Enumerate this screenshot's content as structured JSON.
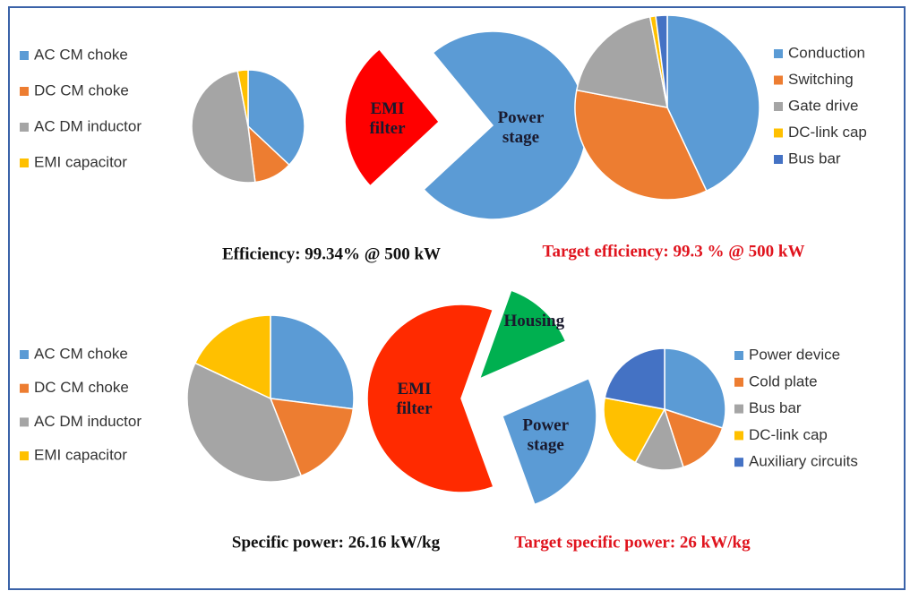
{
  "chart_data": [
    {
      "type": "pie",
      "categories": [
        "AC CM choke",
        "DC CM choke",
        "AC DM inductor",
        "EMI capacitor"
      ],
      "values": [
        37,
        11,
        49,
        3
      ],
      "colors": [
        "#5b9bd5",
        "#ed7d31",
        "#a5a5a5",
        "#ffc000"
      ],
      "legend": "left"
    },
    {
      "type": "pie",
      "categories": [
        "EMI filter",
        "Power stage"
      ],
      "values": [
        26,
        74
      ],
      "colors": [
        "#ff0000",
        "#5b9bd5"
      ],
      "slice_labels": true
    },
    {
      "type": "pie",
      "categories": [
        "Conduction",
        "Switching",
        "Gate drive",
        "DC-link cap",
        "Bus bar"
      ],
      "values": [
        43,
        35,
        19,
        1,
        2
      ],
      "colors": [
        "#5b9bd5",
        "#ed7d31",
        "#a5a5a5",
        "#ffc000",
        "#4472c4"
      ],
      "legend": "right"
    },
    {
      "type": "pie",
      "categories": [
        "AC CM choke",
        "DC CM choke",
        "AC DM inductor",
        "EMI capacitor"
      ],
      "values": [
        27,
        17,
        38,
        18
      ],
      "colors": [
        "#5b9bd5",
        "#ed7d31",
        "#a5a5a5",
        "#ffc000"
      ],
      "legend": "left"
    },
    {
      "type": "pie",
      "categories": [
        "EMI filter",
        "Housing",
        "Power stage"
      ],
      "values": [
        61,
        13,
        26
      ],
      "colors": [
        "#ff2a00",
        "#00b050",
        "#5b9bd5"
      ],
      "slice_labels": true
    },
    {
      "type": "pie",
      "categories": [
        "Power device",
        "Cold plate",
        "Bus bar",
        "DC-link cap",
        "Auxiliary circuits"
      ],
      "values": [
        30,
        15,
        13,
        20,
        22
      ],
      "colors": [
        "#5b9bd5",
        "#ed7d31",
        "#a5a5a5",
        "#ffc000",
        "#4472c4"
      ],
      "legend": "right"
    }
  ],
  "captions": [
    {
      "text": "Efficiency: 99.34% @ 500 kW",
      "color": "#111111"
    },
    {
      "text": "Target efficiency: 99.3 % @ 500 kW",
      "color": "#e0141e"
    },
    {
      "text": "Specific power: 26.16 kW/kg",
      "color": "#111111"
    },
    {
      "text": "Target specific power: 26 kW/kg",
      "color": "#e0141e"
    }
  ]
}
